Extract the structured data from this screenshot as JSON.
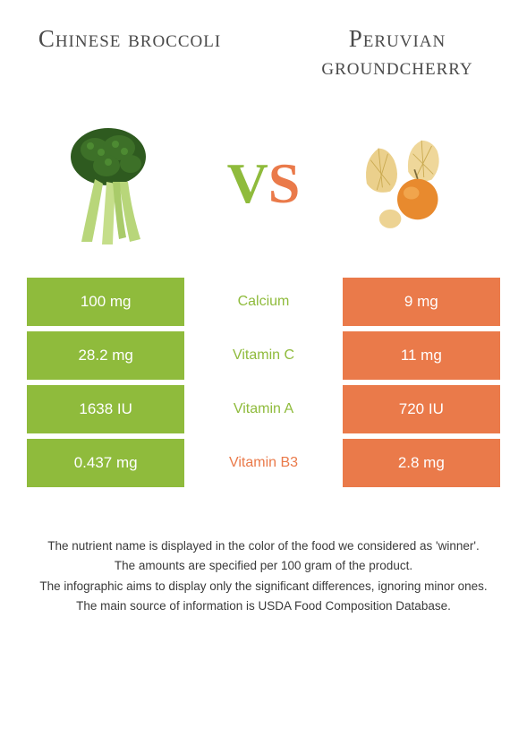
{
  "colors": {
    "left": "#8fbb3c",
    "right": "#ea7a4a",
    "title": "#4a4a4a",
    "notes": "#3a3a3a"
  },
  "foods": {
    "left": {
      "name": "Chinese broccoli"
    },
    "right": {
      "name": "Peruvian groundcherry"
    }
  },
  "vs": {
    "v": "V",
    "s": "S"
  },
  "rows": [
    {
      "nutrient": "Calcium",
      "left": "100 mg",
      "right": "9 mg",
      "winner": "left"
    },
    {
      "nutrient": "Vitamin C",
      "left": "28.2 mg",
      "right": "11 mg",
      "winner": "left"
    },
    {
      "nutrient": "Vitamin A",
      "left": "1638 IU",
      "right": "720 IU",
      "winner": "left"
    },
    {
      "nutrient": "Vitamin B3",
      "left": "0.437 mg",
      "right": "2.8 mg",
      "winner": "right"
    }
  ],
  "notes": [
    "The nutrient name is displayed in the color of the food we considered as 'winner'.",
    "The amounts are specified per 100 gram of the product.",
    "The infographic aims to display only the significant differences, ignoring minor ones.",
    "The main source of information is USDA Food Composition Database."
  ]
}
